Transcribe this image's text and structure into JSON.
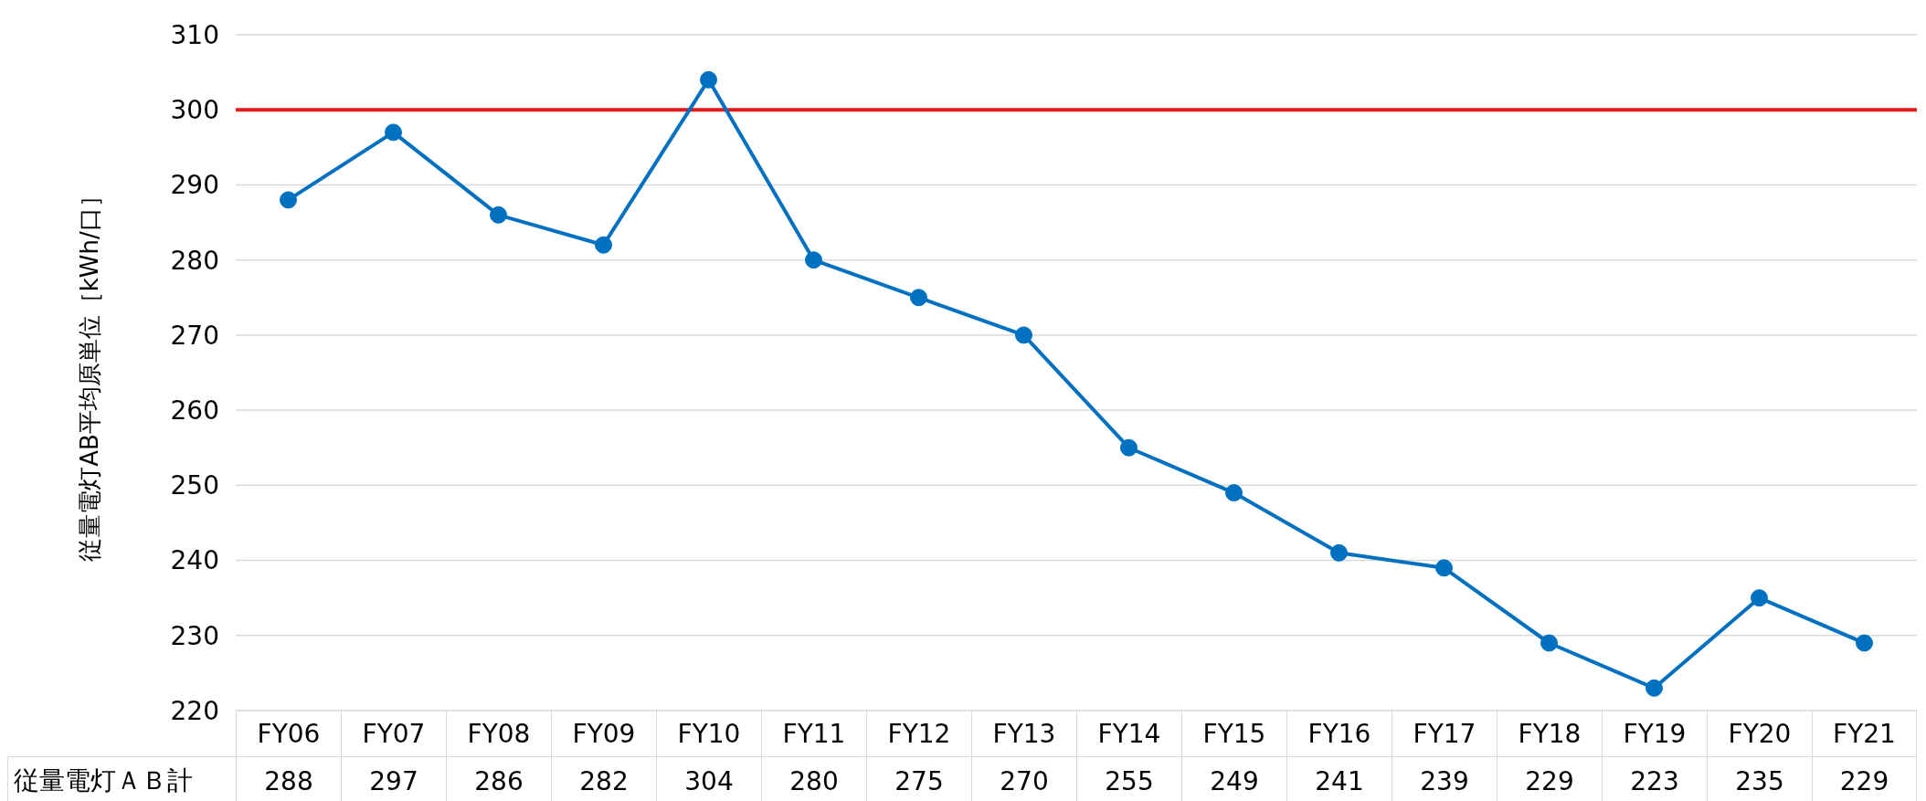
{
  "chart_data": {
    "type": "line",
    "ylabel": "従量電灯AB平均原単位［kWh/口］",
    "categories": [
      "FY06",
      "FY07",
      "FY08",
      "FY09",
      "FY10",
      "FY11",
      "FY12",
      "FY13",
      "FY14",
      "FY15",
      "FY16",
      "FY17",
      "FY18",
      "FY19",
      "FY20",
      "FY21"
    ],
    "series": [
      {
        "name": "従量電灯ＡＢ計",
        "color": "#0070c0",
        "values": [
          288,
          297,
          286,
          282,
          304,
          280,
          275,
          270,
          255,
          249,
          241,
          239,
          229,
          223,
          235,
          229
        ]
      }
    ],
    "ylim": [
      220,
      310
    ],
    "yticks": [
      220,
      230,
      240,
      250,
      260,
      270,
      280,
      290,
      300,
      310
    ],
    "ref_lines": [
      {
        "axis": "y",
        "value": 300,
        "color": "#e31a1c"
      }
    ],
    "grid": "y",
    "marker": "circle",
    "line_style": "solid",
    "data_labels": true
  }
}
